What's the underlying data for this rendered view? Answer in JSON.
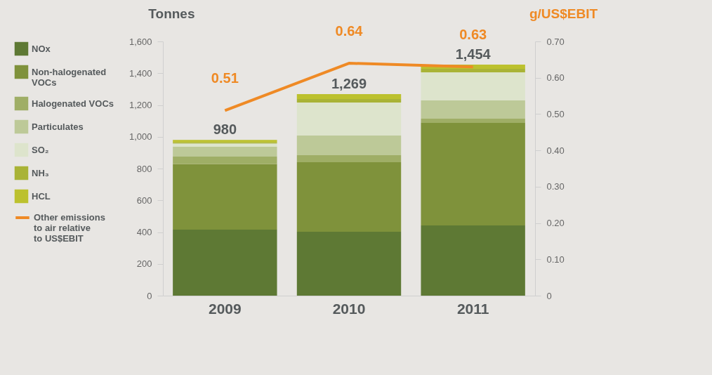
{
  "chart_data": {
    "type": "bar",
    "stacked": true,
    "ylabel": "Tonnes",
    "y2label": "g/US$EBIT",
    "categories": [
      "2009",
      "2010",
      "2011"
    ],
    "series": [
      {
        "name": "NOx",
        "color": "#5e7934",
        "values": [
          415,
          402,
          442
        ]
      },
      {
        "name": "Non-halogenated VOCs",
        "color": "#7f923b",
        "values": [
          413,
          438,
          645
        ]
      },
      {
        "name": "Halogenated VOCs",
        "color": "#9fae66",
        "values": [
          47,
          44,
          27
        ]
      },
      {
        "name": "Particulates",
        "color": "#bdc998",
        "values": [
          62,
          124,
          115
        ]
      },
      {
        "name": "SO₂",
        "color": "#dde4cc",
        "values": [
          21,
          207,
          176
        ]
      },
      {
        "name": "NH₃",
        "color": "#a9b336",
        "values": [
          7,
          23,
          23
        ]
      },
      {
        "name": "HCL",
        "color": "#bcc12e",
        "values": [
          15,
          31,
          26
        ]
      },
      {
        "name": "Other emissions to air relative to US$EBIT",
        "type": "line",
        "axis": "y2",
        "color": "#ef8a25",
        "values": [
          0.51,
          0.64,
          0.63
        ],
        "value_labels": [
          "0.51",
          "0.64",
          "0.63"
        ]
      }
    ],
    "totals": [
      "980",
      "1,269",
      "1,454"
    ],
    "ylim": [
      0,
      1600
    ],
    "yticks": [
      0,
      200,
      400,
      600,
      800,
      {
        "value": 1000,
        "label": "1,000"
      },
      {
        "value": 1200,
        "label": "1,200"
      },
      {
        "value": 1400,
        "label": "1,400"
      },
      {
        "value": 1600,
        "label": "1,600"
      }
    ],
    "y2lim": [
      0,
      0.7
    ],
    "y2ticks": [
      0,
      {
        "value": 0.1,
        "label": "0.10"
      },
      {
        "value": 0.2,
        "label": "0.20"
      },
      {
        "value": 0.3,
        "label": "0.30"
      },
      {
        "value": 0.4,
        "label": "0.40"
      },
      {
        "value": 0.5,
        "label": "0.50"
      },
      {
        "value": 0.6,
        "label": "0.60"
      },
      {
        "value": 0.7,
        "label": "0.70"
      }
    ],
    "grid": false,
    "legend": "left",
    "marker": "none",
    "line_style": "solid"
  }
}
